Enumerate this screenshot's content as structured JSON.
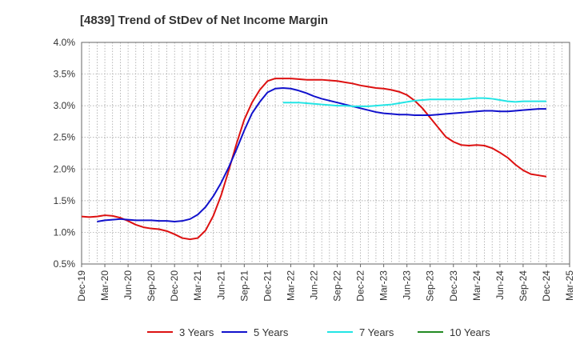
{
  "chart_data": {
    "type": "line",
    "title": "[4839]  Trend of StDev of Net Income Margin",
    "xlabel": "",
    "ylabel": "",
    "x_ticks": [
      "Dec-19",
      "Mar-20",
      "Jun-20",
      "Sep-20",
      "Dec-20",
      "Mar-21",
      "Jun-21",
      "Sep-21",
      "Dec-21",
      "Mar-22",
      "Jun-22",
      "Sep-22",
      "Dec-22",
      "Mar-23",
      "Jun-23",
      "Sep-23",
      "Dec-23",
      "Mar-24",
      "Jun-24",
      "Sep-24",
      "Dec-24",
      "Mar-25"
    ],
    "y_ticks": [
      "0.5%",
      "1.0%",
      "1.5%",
      "2.0%",
      "2.5%",
      "3.0%",
      "3.5%",
      "4.0%"
    ],
    "ylim": [
      0.5,
      4.0
    ],
    "grid": true,
    "legend_position": "bottom",
    "series": [
      {
        "name": "3 Years",
        "color": "#dd1111",
        "points": [
          [
            "Dec-19",
            1.25
          ],
          [
            "Jan-20",
            1.24
          ],
          [
            "Feb-20",
            1.25
          ],
          [
            "Mar-20",
            1.27
          ],
          [
            "Apr-20",
            1.26
          ],
          [
            "May-20",
            1.23
          ],
          [
            "Jun-20",
            1.18
          ],
          [
            "Jul-20",
            1.12
          ],
          [
            "Aug-20",
            1.08
          ],
          [
            "Sep-20",
            1.06
          ],
          [
            "Oct-20",
            1.05
          ],
          [
            "Nov-20",
            1.02
          ],
          [
            "Dec-20",
            0.97
          ],
          [
            "Jan-21",
            0.91
          ],
          [
            "Feb-21",
            0.89
          ],
          [
            "Mar-21",
            0.91
          ],
          [
            "Apr-21",
            1.03
          ],
          [
            "May-21",
            1.26
          ],
          [
            "Jun-21",
            1.58
          ],
          [
            "Jul-21",
            1.98
          ],
          [
            "Aug-21",
            2.4
          ],
          [
            "Sep-21",
            2.78
          ],
          [
            "Oct-21",
            3.05
          ],
          [
            "Nov-21",
            3.25
          ],
          [
            "Dec-21",
            3.39
          ],
          [
            "Jan-22",
            3.43
          ],
          [
            "Feb-22",
            3.43
          ],
          [
            "Mar-22",
            3.43
          ],
          [
            "Apr-22",
            3.42
          ],
          [
            "May-22",
            3.41
          ],
          [
            "Jun-22",
            3.41
          ],
          [
            "Jul-22",
            3.41
          ],
          [
            "Aug-22",
            3.4
          ],
          [
            "Sep-22",
            3.39
          ],
          [
            "Oct-22",
            3.37
          ],
          [
            "Nov-22",
            3.35
          ],
          [
            "Dec-22",
            3.32
          ],
          [
            "Jan-23",
            3.3
          ],
          [
            "Feb-23",
            3.28
          ],
          [
            "Mar-23",
            3.27
          ],
          [
            "Apr-23",
            3.25
          ],
          [
            "May-23",
            3.22
          ],
          [
            "Jun-23",
            3.17
          ],
          [
            "Jul-23",
            3.08
          ],
          [
            "Aug-23",
            2.96
          ],
          [
            "Sep-23",
            2.81
          ],
          [
            "Oct-23",
            2.66
          ],
          [
            "Nov-23",
            2.51
          ],
          [
            "Dec-23",
            2.43
          ],
          [
            "Jan-24",
            2.38
          ],
          [
            "Feb-24",
            2.37
          ],
          [
            "Mar-24",
            2.38
          ],
          [
            "Apr-24",
            2.37
          ],
          [
            "May-24",
            2.33
          ],
          [
            "Jun-24",
            2.26
          ],
          [
            "Jul-24",
            2.18
          ],
          [
            "Aug-24",
            2.07
          ],
          [
            "Sep-24",
            1.98
          ],
          [
            "Oct-24",
            1.92
          ],
          [
            "Nov-24",
            1.9
          ],
          [
            "Dec-24",
            1.88
          ]
        ]
      },
      {
        "name": "5 Years",
        "color": "#1111cc",
        "points": [
          [
            "Feb-20",
            1.17
          ],
          [
            "Mar-20",
            1.19
          ],
          [
            "Apr-20",
            1.2
          ],
          [
            "May-20",
            1.21
          ],
          [
            "Jun-20",
            1.2
          ],
          [
            "Jul-20",
            1.19
          ],
          [
            "Aug-20",
            1.19
          ],
          [
            "Sep-20",
            1.19
          ],
          [
            "Oct-20",
            1.18
          ],
          [
            "Nov-20",
            1.18
          ],
          [
            "Dec-20",
            1.17
          ],
          [
            "Jan-21",
            1.18
          ],
          [
            "Feb-21",
            1.21
          ],
          [
            "Mar-21",
            1.28
          ],
          [
            "Apr-21",
            1.4
          ],
          [
            "May-21",
            1.57
          ],
          [
            "Jun-21",
            1.78
          ],
          [
            "Jul-21",
            2.03
          ],
          [
            "Aug-21",
            2.31
          ],
          [
            "Sep-21",
            2.61
          ],
          [
            "Oct-21",
            2.88
          ],
          [
            "Nov-21",
            3.06
          ],
          [
            "Dec-21",
            3.21
          ],
          [
            "Jan-22",
            3.27
          ],
          [
            "Feb-22",
            3.28
          ],
          [
            "Mar-22",
            3.27
          ],
          [
            "Apr-22",
            3.24
          ],
          [
            "May-22",
            3.2
          ],
          [
            "Jun-22",
            3.15
          ],
          [
            "Jul-22",
            3.11
          ],
          [
            "Aug-22",
            3.08
          ],
          [
            "Sep-22",
            3.05
          ],
          [
            "Oct-22",
            3.02
          ],
          [
            "Nov-22",
            2.99
          ],
          [
            "Dec-22",
            2.96
          ],
          [
            "Jan-23",
            2.93
          ],
          [
            "Feb-23",
            2.9
          ],
          [
            "Mar-23",
            2.88
          ],
          [
            "Apr-23",
            2.87
          ],
          [
            "May-23",
            2.86
          ],
          [
            "Jun-23",
            2.86
          ],
          [
            "Jul-23",
            2.85
          ],
          [
            "Aug-23",
            2.85
          ],
          [
            "Sep-23",
            2.85
          ],
          [
            "Oct-23",
            2.86
          ],
          [
            "Nov-23",
            2.87
          ],
          [
            "Dec-23",
            2.88
          ],
          [
            "Jan-24",
            2.89
          ],
          [
            "Feb-24",
            2.9
          ],
          [
            "Mar-24",
            2.91
          ],
          [
            "Apr-24",
            2.92
          ],
          [
            "May-24",
            2.92
          ],
          [
            "Jun-24",
            2.91
          ],
          [
            "Jul-24",
            2.91
          ],
          [
            "Aug-24",
            2.92
          ],
          [
            "Sep-24",
            2.93
          ],
          [
            "Oct-24",
            2.94
          ],
          [
            "Nov-24",
            2.95
          ],
          [
            "Dec-24",
            2.95
          ]
        ]
      },
      {
        "name": "7 Years",
        "color": "#22e5e5",
        "points": [
          [
            "Feb-22",
            3.05
          ],
          [
            "Mar-22",
            3.05
          ],
          [
            "Apr-22",
            3.05
          ],
          [
            "May-22",
            3.04
          ],
          [
            "Jun-22",
            3.03
          ],
          [
            "Jul-22",
            3.02
          ],
          [
            "Aug-22",
            3.01
          ],
          [
            "Sep-22",
            3.0
          ],
          [
            "Oct-22",
            3.0
          ],
          [
            "Nov-22",
            2.99
          ],
          [
            "Dec-22",
            2.99
          ],
          [
            "Jan-23",
            2.99
          ],
          [
            "Feb-23",
            3.0
          ],
          [
            "Mar-23",
            3.01
          ],
          [
            "Apr-23",
            3.02
          ],
          [
            "May-23",
            3.04
          ],
          [
            "Jun-23",
            3.06
          ],
          [
            "Jul-23",
            3.08
          ],
          [
            "Aug-23",
            3.09
          ],
          [
            "Sep-23",
            3.1
          ],
          [
            "Oct-23",
            3.1
          ],
          [
            "Nov-23",
            3.1
          ],
          [
            "Dec-23",
            3.1
          ],
          [
            "Jan-24",
            3.1
          ],
          [
            "Feb-24",
            3.11
          ],
          [
            "Mar-24",
            3.12
          ],
          [
            "Apr-24",
            3.12
          ],
          [
            "May-24",
            3.11
          ],
          [
            "Jun-24",
            3.09
          ],
          [
            "Jul-24",
            3.07
          ],
          [
            "Aug-24",
            3.06
          ],
          [
            "Sep-24",
            3.07
          ],
          [
            "Oct-24",
            3.07
          ],
          [
            "Nov-24",
            3.07
          ],
          [
            "Dec-24",
            3.07
          ]
        ]
      },
      {
        "name": "10 Years",
        "color": "#228b22",
        "points": []
      }
    ]
  }
}
